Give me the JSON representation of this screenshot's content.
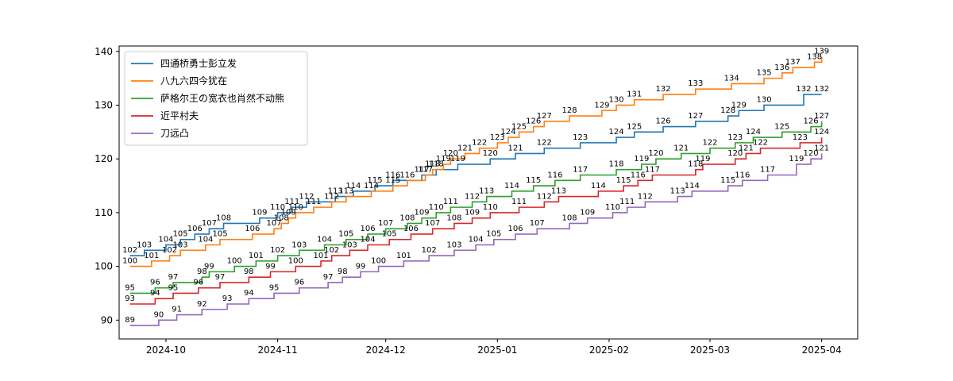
{
  "chart_data": {
    "type": "line",
    "step": "post",
    "grid": false,
    "legend_position": "upper-left",
    "title": "",
    "xlabel": "",
    "ylabel": "",
    "xlim": [
      "2024-09-18",
      "2025-04-11"
    ],
    "ylim": [
      86.5,
      141
    ],
    "xticks": [
      {
        "date": "2024-10-01",
        "label": "2024-10"
      },
      {
        "date": "2024-11-01",
        "label": "2024-11"
      },
      {
        "date": "2024-12-01",
        "label": "2024-12"
      },
      {
        "date": "2025-01-01",
        "label": "2025-01"
      },
      {
        "date": "2025-02-01",
        "label": "2025-02"
      },
      {
        "date": "2025-03-01",
        "label": "2025-03"
      },
      {
        "date": "2025-04-01",
        "label": "2025-04"
      }
    ],
    "yticks": [
      90,
      100,
      110,
      120,
      130,
      140
    ],
    "series": [
      {
        "name": "四通桥勇士彭立发",
        "color": "#1f77b4",
        "points": [
          {
            "x": "2024-09-21",
            "y": 102
          },
          {
            "x": "2024-09-25",
            "y": 103
          },
          {
            "x": "2024-10-01",
            "y": 104
          },
          {
            "x": "2024-10-05",
            "y": 105
          },
          {
            "x": "2024-10-09",
            "y": 106
          },
          {
            "x": "2024-10-13",
            "y": 107
          },
          {
            "x": "2024-10-17",
            "y": 108
          },
          {
            "x": "2024-10-27",
            "y": 109
          },
          {
            "x": "2024-11-01",
            "y": 110
          },
          {
            "x": "2024-11-05",
            "y": 111
          },
          {
            "x": "2024-11-09",
            "y": 112
          },
          {
            "x": "2024-11-17",
            "y": 113
          },
          {
            "x": "2024-11-22",
            "y": 114
          },
          {
            "x": "2024-11-28",
            "y": 115
          },
          {
            "x": "2024-12-03",
            "y": 116
          },
          {
            "x": "2024-12-11",
            "y": 117
          },
          {
            "x": "2024-12-15",
            "y": 118
          },
          {
            "x": "2024-12-21",
            "y": 119
          },
          {
            "x": "2024-12-30",
            "y": 120
          },
          {
            "x": "2025-01-06",
            "y": 121
          },
          {
            "x": "2025-01-14",
            "y": 122
          },
          {
            "x": "2025-01-24",
            "y": 123
          },
          {
            "x": "2025-02-03",
            "y": 124
          },
          {
            "x": "2025-02-08",
            "y": 125
          },
          {
            "x": "2025-02-16",
            "y": 126
          },
          {
            "x": "2025-02-25",
            "y": 127
          },
          {
            "x": "2025-03-06",
            "y": 128
          },
          {
            "x": "2025-03-09",
            "y": 129
          },
          {
            "x": "2025-03-16",
            "y": 130
          },
          {
            "x": "2025-03-27",
            "y": 132
          },
          {
            "x": "2025-04-01",
            "y": 132
          }
        ]
      },
      {
        "name": "八九六四今犹在",
        "color": "#ff7f0e",
        "points": [
          {
            "x": "2024-09-21",
            "y": 100
          },
          {
            "x": "2024-09-27",
            "y": 101
          },
          {
            "x": "2024-10-02",
            "y": 102
          },
          {
            "x": "2024-10-05",
            "y": 103
          },
          {
            "x": "2024-10-12",
            "y": 104
          },
          {
            "x": "2024-10-16",
            "y": 105
          },
          {
            "x": "2024-10-25",
            "y": 106
          },
          {
            "x": "2024-10-31",
            "y": 107
          },
          {
            "x": "2024-11-02",
            "y": 108
          },
          {
            "x": "2024-11-04",
            "y": 109
          },
          {
            "x": "2024-11-06",
            "y": 110
          },
          {
            "x": "2024-11-11",
            "y": 111
          },
          {
            "x": "2024-11-16",
            "y": 112
          },
          {
            "x": "2024-11-20",
            "y": 113
          },
          {
            "x": "2024-11-27",
            "y": 114
          },
          {
            "x": "2024-12-03",
            "y": 115
          },
          {
            "x": "2024-12-07",
            "y": 116
          },
          {
            "x": "2024-12-12",
            "y": 117
          },
          {
            "x": "2024-12-14",
            "y": 118
          },
          {
            "x": "2024-12-17",
            "y": 119
          },
          {
            "x": "2024-12-19",
            "y": 120
          },
          {
            "x": "2024-12-23",
            "y": 121
          },
          {
            "x": "2024-12-27",
            "y": 122
          },
          {
            "x": "2025-01-01",
            "y": 123
          },
          {
            "x": "2025-01-04",
            "y": 124
          },
          {
            "x": "2025-01-07",
            "y": 125
          },
          {
            "x": "2025-01-11",
            "y": 126
          },
          {
            "x": "2025-01-14",
            "y": 127
          },
          {
            "x": "2025-01-21",
            "y": 128
          },
          {
            "x": "2025-01-30",
            "y": 129
          },
          {
            "x": "2025-02-03",
            "y": 130
          },
          {
            "x": "2025-02-08",
            "y": 131
          },
          {
            "x": "2025-02-16",
            "y": 132
          },
          {
            "x": "2025-02-25",
            "y": 133
          },
          {
            "x": "2025-03-07",
            "y": 134
          },
          {
            "x": "2025-03-16",
            "y": 135
          },
          {
            "x": "2025-03-21",
            "y": 136
          },
          {
            "x": "2025-03-24",
            "y": 137
          },
          {
            "x": "2025-03-30",
            "y": 138
          },
          {
            "x": "2025-04-01",
            "y": 139
          }
        ]
      },
      {
        "name": "萨格尔王の宽衣也肖然不动熊",
        "color": "#2ca02c",
        "points": [
          {
            "x": "2024-09-21",
            "y": 95
          },
          {
            "x": "2024-09-28",
            "y": 96
          },
          {
            "x": "2024-10-03",
            "y": 97
          },
          {
            "x": "2024-10-11",
            "y": 98
          },
          {
            "x": "2024-10-13",
            "y": 99
          },
          {
            "x": "2024-10-20",
            "y": 100
          },
          {
            "x": "2024-10-26",
            "y": 101
          },
          {
            "x": "2024-11-01",
            "y": 102
          },
          {
            "x": "2024-11-07",
            "y": 103
          },
          {
            "x": "2024-11-14",
            "y": 104
          },
          {
            "x": "2024-11-20",
            "y": 105
          },
          {
            "x": "2024-11-26",
            "y": 106
          },
          {
            "x": "2024-12-01",
            "y": 107
          },
          {
            "x": "2024-12-07",
            "y": 108
          },
          {
            "x": "2024-12-11",
            "y": 109
          },
          {
            "x": "2024-12-15",
            "y": 110
          },
          {
            "x": "2024-12-19",
            "y": 111
          },
          {
            "x": "2024-12-25",
            "y": 112
          },
          {
            "x": "2024-12-29",
            "y": 113
          },
          {
            "x": "2025-01-05",
            "y": 114
          },
          {
            "x": "2025-01-11",
            "y": 115
          },
          {
            "x": "2025-01-17",
            "y": 116
          },
          {
            "x": "2025-01-24",
            "y": 117
          },
          {
            "x": "2025-02-03",
            "y": 118
          },
          {
            "x": "2025-02-10",
            "y": 119
          },
          {
            "x": "2025-02-14",
            "y": 120
          },
          {
            "x": "2025-02-21",
            "y": 121
          },
          {
            "x": "2025-03-01",
            "y": 122
          },
          {
            "x": "2025-03-08",
            "y": 123
          },
          {
            "x": "2025-03-13",
            "y": 124
          },
          {
            "x": "2025-03-21",
            "y": 125
          },
          {
            "x": "2025-03-29",
            "y": 126
          },
          {
            "x": "2025-04-01",
            "y": 127
          }
        ]
      },
      {
        "name": "近平村夫",
        "color": "#d62728",
        "points": [
          {
            "x": "2024-09-21",
            "y": 93
          },
          {
            "x": "2024-09-28",
            "y": 94
          },
          {
            "x": "2024-10-03",
            "y": 95
          },
          {
            "x": "2024-10-10",
            "y": 96
          },
          {
            "x": "2024-10-16",
            "y": 97
          },
          {
            "x": "2024-10-24",
            "y": 98
          },
          {
            "x": "2024-10-30",
            "y": 99
          },
          {
            "x": "2024-11-06",
            "y": 100
          },
          {
            "x": "2024-11-13",
            "y": 101
          },
          {
            "x": "2024-11-16",
            "y": 102
          },
          {
            "x": "2024-11-21",
            "y": 103
          },
          {
            "x": "2024-11-26",
            "y": 104
          },
          {
            "x": "2024-12-02",
            "y": 105
          },
          {
            "x": "2024-12-08",
            "y": 106
          },
          {
            "x": "2024-12-14",
            "y": 107
          },
          {
            "x": "2024-12-20",
            "y": 108
          },
          {
            "x": "2024-12-25",
            "y": 109
          },
          {
            "x": "2024-12-30",
            "y": 110
          },
          {
            "x": "2025-01-07",
            "y": 111
          },
          {
            "x": "2025-01-14",
            "y": 112
          },
          {
            "x": "2025-01-18",
            "y": 113
          },
          {
            "x": "2025-01-29",
            "y": 114
          },
          {
            "x": "2025-02-05",
            "y": 115
          },
          {
            "x": "2025-02-09",
            "y": 116
          },
          {
            "x": "2025-02-13",
            "y": 117
          },
          {
            "x": "2025-02-25",
            "y": 118
          },
          {
            "x": "2025-02-27",
            "y": 119
          },
          {
            "x": "2025-03-08",
            "y": 120
          },
          {
            "x": "2025-03-11",
            "y": 121
          },
          {
            "x": "2025-03-15",
            "y": 122
          },
          {
            "x": "2025-03-26",
            "y": 123
          },
          {
            "x": "2025-04-01",
            "y": 124
          }
        ]
      },
      {
        "name": "刀远凸",
        "color": "#9467bd",
        "points": [
          {
            "x": "2024-09-21",
            "y": 89
          },
          {
            "x": "2024-09-29",
            "y": 90
          },
          {
            "x": "2024-10-04",
            "y": 91
          },
          {
            "x": "2024-10-11",
            "y": 92
          },
          {
            "x": "2024-10-18",
            "y": 93
          },
          {
            "x": "2024-10-24",
            "y": 94
          },
          {
            "x": "2024-10-31",
            "y": 95
          },
          {
            "x": "2024-11-07",
            "y": 96
          },
          {
            "x": "2024-11-15",
            "y": 97
          },
          {
            "x": "2024-11-19",
            "y": 98
          },
          {
            "x": "2024-11-24",
            "y": 99
          },
          {
            "x": "2024-11-29",
            "y": 100
          },
          {
            "x": "2024-12-06",
            "y": 101
          },
          {
            "x": "2024-12-13",
            "y": 102
          },
          {
            "x": "2024-12-20",
            "y": 103
          },
          {
            "x": "2024-12-26",
            "y": 104
          },
          {
            "x": "2024-12-31",
            "y": 105
          },
          {
            "x": "2025-01-06",
            "y": 106
          },
          {
            "x": "2025-01-12",
            "y": 107
          },
          {
            "x": "2025-01-21",
            "y": 108
          },
          {
            "x": "2025-01-26",
            "y": 109
          },
          {
            "x": "2025-02-02",
            "y": 110
          },
          {
            "x": "2025-02-06",
            "y": 111
          },
          {
            "x": "2025-02-11",
            "y": 112
          },
          {
            "x": "2025-02-20",
            "y": 113
          },
          {
            "x": "2025-02-24",
            "y": 114
          },
          {
            "x": "2025-03-06",
            "y": 115
          },
          {
            "x": "2025-03-10",
            "y": 116
          },
          {
            "x": "2025-03-17",
            "y": 117
          },
          {
            "x": "2025-03-25",
            "y": 119
          },
          {
            "x": "2025-03-29",
            "y": 120
          },
          {
            "x": "2025-04-01",
            "y": 121
          }
        ]
      }
    ]
  }
}
